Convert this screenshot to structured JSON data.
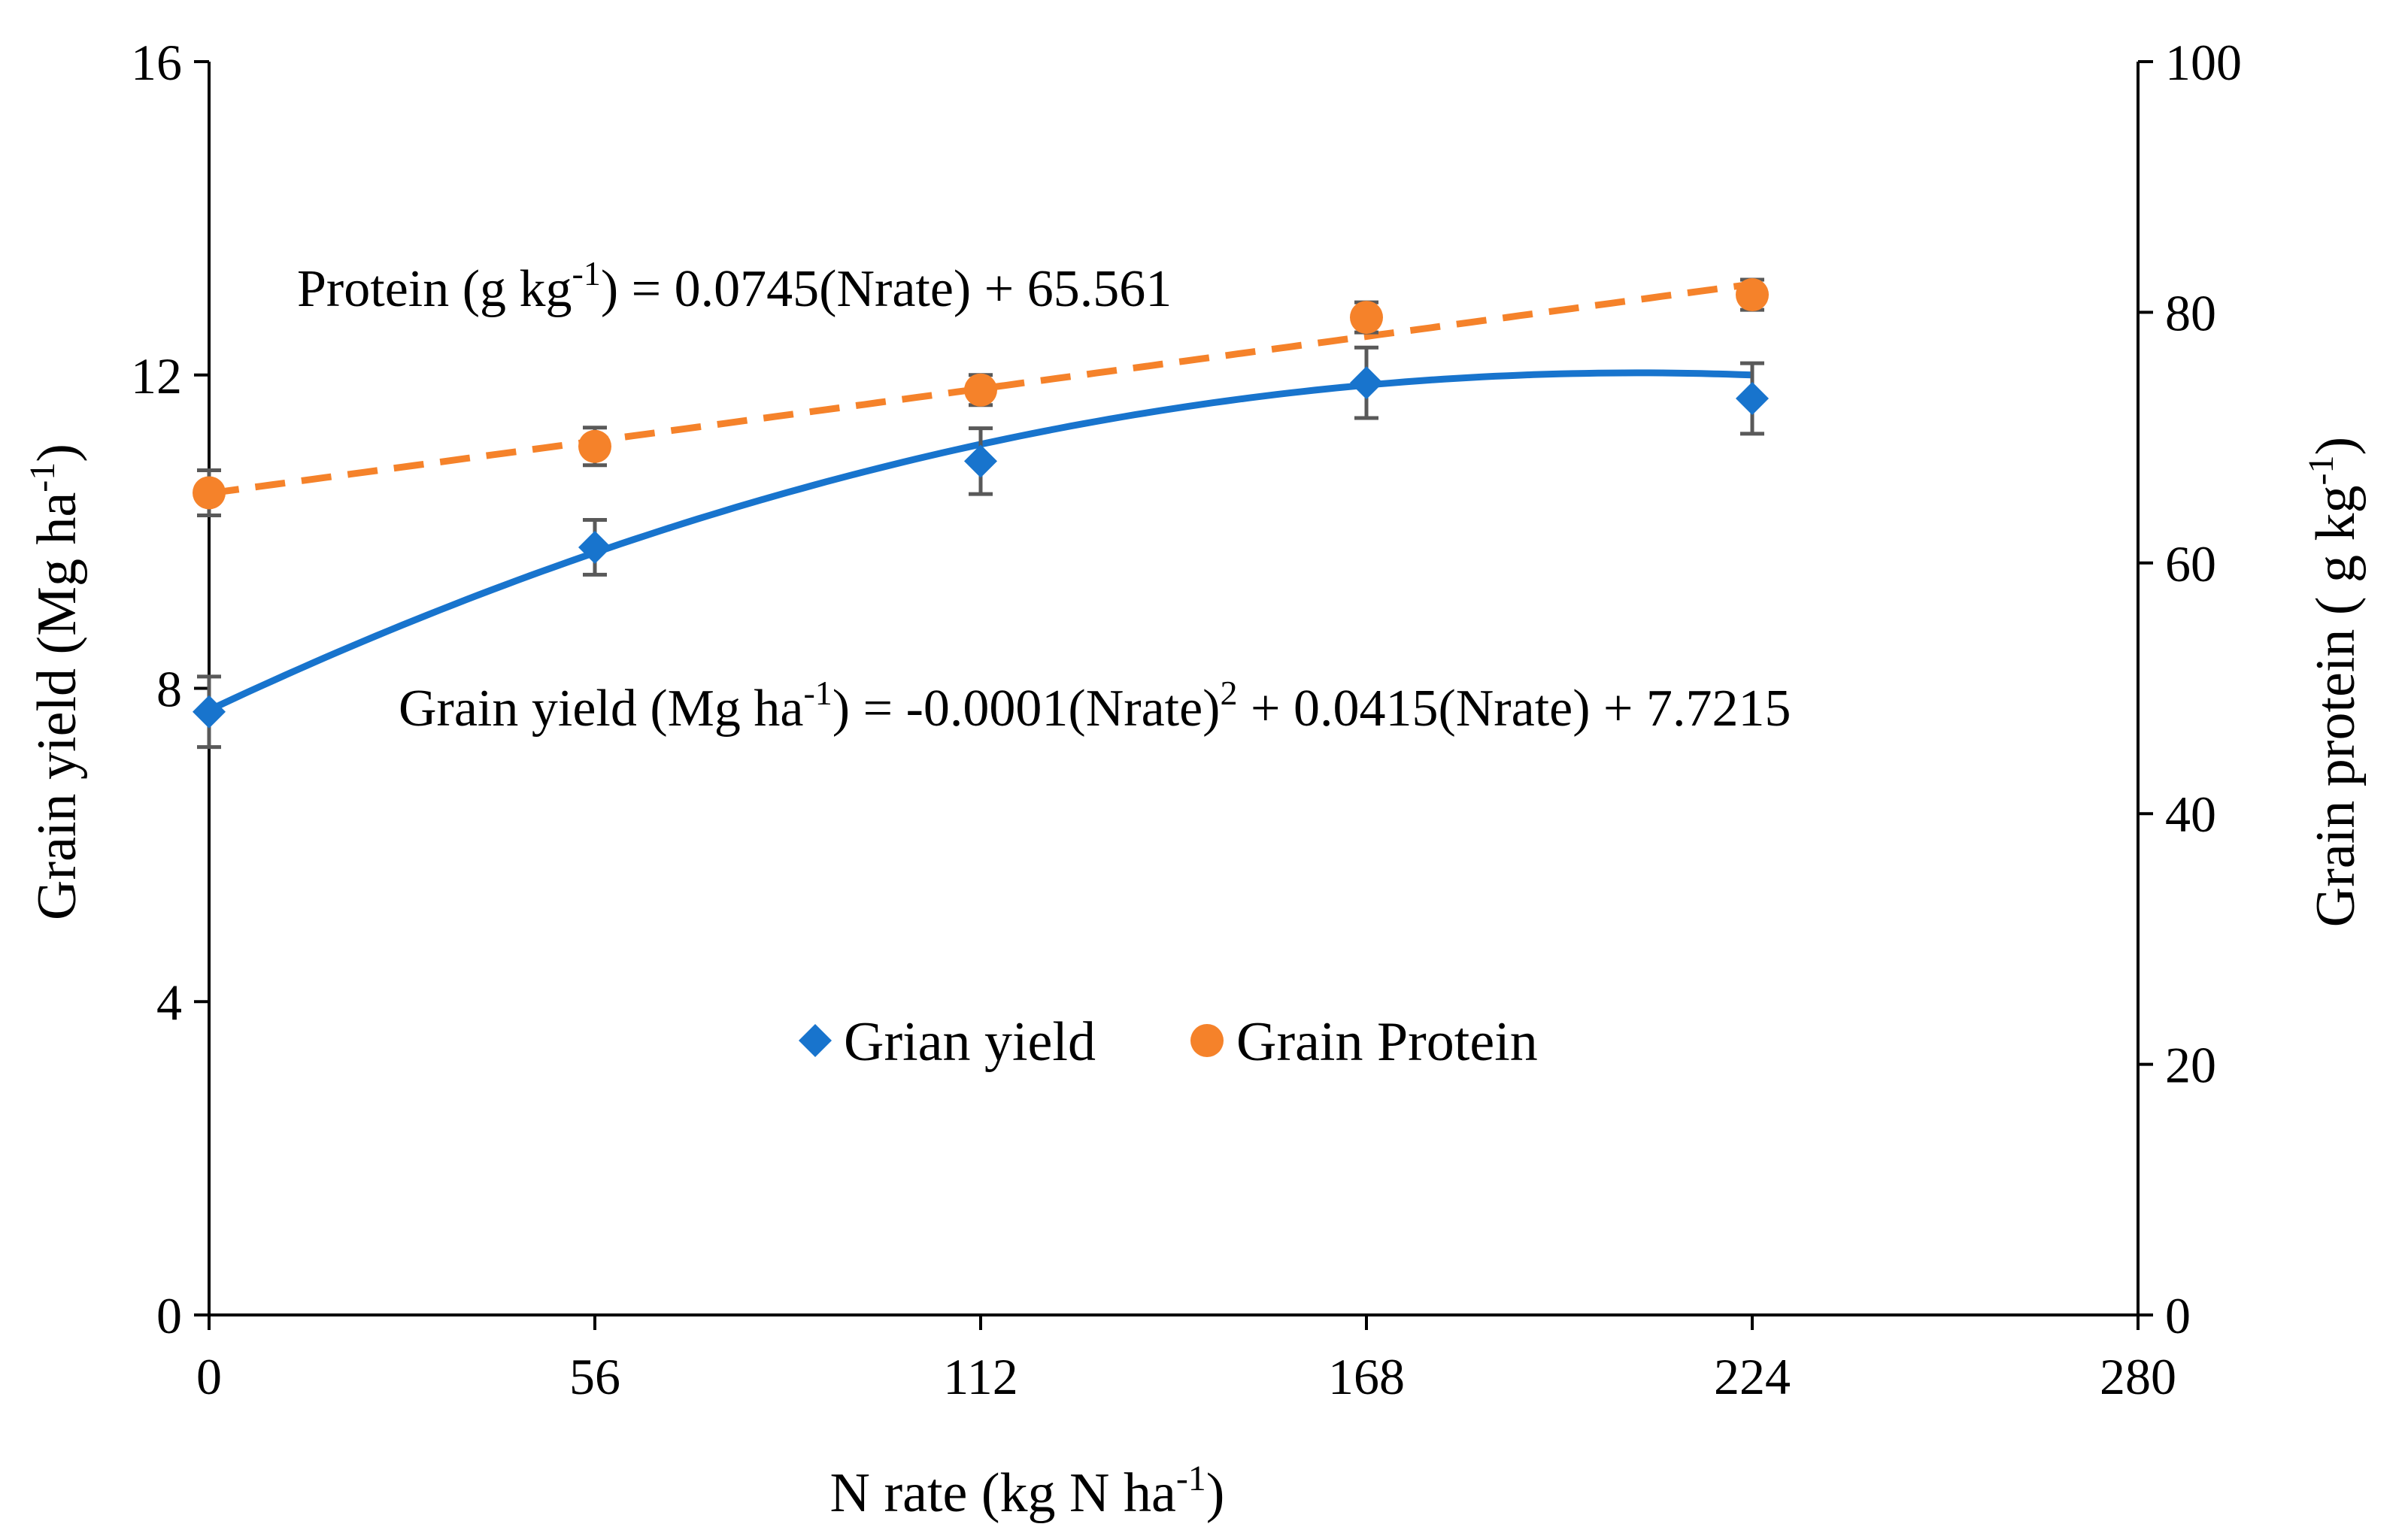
{
  "chart_data": {
    "type": "scatter",
    "title": "",
    "xlabel": {
      "main": "N rate (kg N ha",
      "sup": "-1",
      "tail": ")"
    },
    "ylabel_left": {
      "main": "Grain yield (Mg ha",
      "sup": "-1",
      "tail": ")"
    },
    "ylabel_right": {
      "main": "Grain protein ( g kg",
      "sup": "-1",
      "tail": ")"
    },
    "xlim": [
      0,
      280
    ],
    "ylim_left": [
      0,
      16
    ],
    "ylim_right": [
      0,
      100
    ],
    "x_ticks": [
      "0",
      "56",
      "112",
      "168",
      "224",
      "280"
    ],
    "y_left_ticks": [
      "0",
      "4",
      "8",
      "12",
      "16"
    ],
    "y_right_ticks": [
      "0",
      "20",
      "40",
      "60",
      "80",
      "100"
    ],
    "series": [
      {
        "name": "Grian yield",
        "axis": "left",
        "marker": "diamond",
        "color": "#1874CD",
        "x": [
          0,
          56,
          112,
          168,
          224
        ],
        "y": [
          7.7,
          9.8,
          10.9,
          11.9,
          11.7
        ],
        "error": [
          0.45,
          0.35,
          0.42,
          0.45,
          0.45
        ],
        "trendline": {
          "type": "poly2",
          "coef": [
            -0.0001,
            0.0415,
            7.7215
          ],
          "style": "solid"
        }
      },
      {
        "name": "Grain Protein",
        "axis": "right",
        "marker": "circle",
        "color": "#F5822A",
        "x": [
          0,
          56,
          112,
          168,
          224
        ],
        "y": [
          65.6,
          69.3,
          73.8,
          79.6,
          81.4
        ],
        "error": [
          1.8,
          1.5,
          1.2,
          1.2,
          1.2
        ],
        "trendline": {
          "type": "linear",
          "coef": [
            0.0745,
            65.561
          ],
          "style": "dashed"
        }
      }
    ],
    "annotations": {
      "protein_eq": {
        "a": "Protein (g kg",
        "sup": "-1",
        "b": ") = 0.0745(Nrate) + 65.561"
      },
      "yield_eq": {
        "a": "Grain yield (Mg ha",
        "sup1": "-1",
        "b": ") = -0.0001(Nrate)",
        "sup2": "2",
        "c": " + 0.0415(Nrate) + 7.7215"
      }
    },
    "legend_position": "center",
    "error_color": "#595959",
    "grid": false
  }
}
